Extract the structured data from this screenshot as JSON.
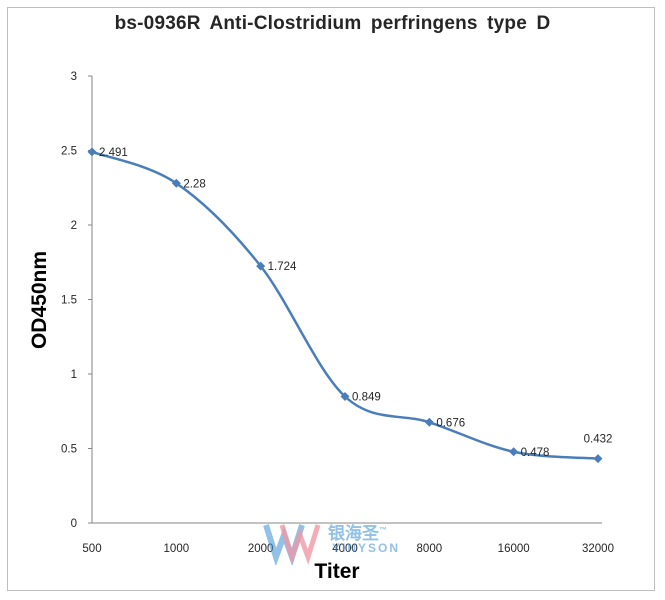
{
  "chart_data": {
    "type": "line",
    "title": "bs-0936R  Anti-Clostridium  perfringens type D",
    "xlabel": "Titer",
    "ylabel": "OD450nm",
    "categories": [
      "500",
      "1000",
      "2000",
      "4000",
      "8000",
      "16000",
      "32000"
    ],
    "series": [
      {
        "values": [
          2.491,
          2.28,
          1.724,
          0.849,
          0.676,
          0.478,
          0.432
        ],
        "labels": [
          "2.491",
          "2.28",
          "1.724",
          "0.849",
          "0.676",
          "0.478",
          "0.432"
        ],
        "color": "#4a7ebb"
      }
    ],
    "ylim": [
      0,
      3
    ],
    "yticks": [
      "0",
      "0.5",
      "1",
      "1.5",
      "2",
      "2.5",
      "3"
    ],
    "grid": false,
    "legend": "none"
  },
  "watermark": {
    "cn": "银海圣",
    "tm": "™",
    "en": "YINYSON"
  }
}
